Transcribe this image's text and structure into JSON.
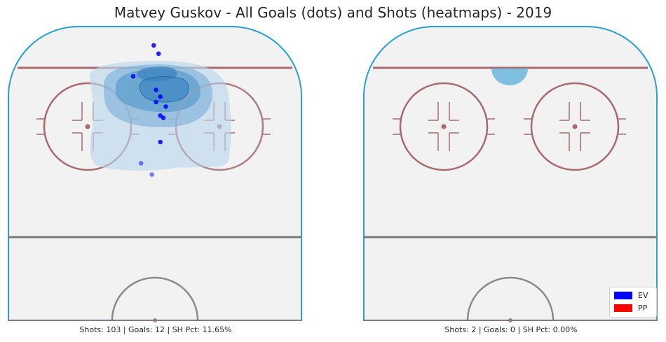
{
  "title": "Matvey Guskov - All Goals (dots) and Shots (heatmaps) - 2019",
  "colors": {
    "rink_ice": "#f2f2f2",
    "boards": "#29a0d0",
    "red_line": "#a86a6e",
    "circle": "#a86a6e",
    "blue_line": "#7a7a7a",
    "crease": "#8a8a8a",
    "ev": "#0000ff",
    "pp": "#ff0000",
    "heat_light": "#bcd6ec",
    "heat_mid": "#7fb3d9",
    "heat_dark": "#3b83c0",
    "heat_darkest": "#1e5fa0"
  },
  "chart_data": [
    {
      "type": "scatter",
      "panel": "left",
      "caption": "Shots: 103 | Goals: 12 | SH Pct: 11.65%",
      "shots": 103,
      "goals": 12,
      "sh_pct": 11.65,
      "heatmap": "present",
      "series": [
        {
          "name": "EV",
          "color": "#0000ff",
          "points": [
            {
              "x": -0.2,
              "y": 75.4
            },
            {
              "x": 0.6,
              "y": 74.3
            },
            {
              "x": -3.6,
              "y": 71.3
            },
            {
              "x": 0.2,
              "y": 69.5
            },
            {
              "x": 0.2,
              "y": 67.9
            },
            {
              "x": 0.9,
              "y": 68.6
            },
            {
              "x": 1.8,
              "y": 67.3
            },
            {
              "x": 0.9,
              "y": 66.1
            },
            {
              "x": 1.4,
              "y": 65.8
            },
            {
              "x": 0.9,
              "y": 62.6
            },
            {
              "x": -2.3,
              "y": 59.8
            },
            {
              "x": -0.5,
              "y": 58.3
            }
          ]
        }
      ]
    },
    {
      "type": "scatter",
      "panel": "right",
      "caption": "Shots: 2 | Goals: 0 | SH Pct: 0.00%",
      "shots": 2,
      "goals": 0,
      "sh_pct": 0.0,
      "heatmap": "present",
      "series": [
        {
          "name": "EV",
          "color": "#0000ff",
          "points": []
        },
        {
          "name": "PP",
          "color": "#ff0000",
          "points": []
        }
      ]
    }
  ],
  "legend": {
    "placement": "bottom-right",
    "items": [
      {
        "label": "EV",
        "color": "#0000ff"
      },
      {
        "label": "PP",
        "color": "#ff0000"
      }
    ]
  }
}
